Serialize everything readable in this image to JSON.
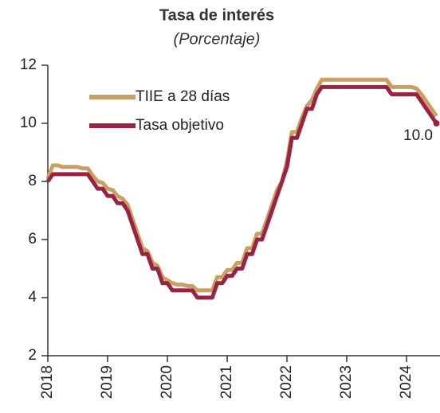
{
  "chart_data": {
    "type": "line",
    "title": "Tasa de interés",
    "subtitle": "(Porcentaje)",
    "annotation": "10.0",
    "legend": "upper left",
    "xlim": [
      2018,
      2024.57
    ],
    "xticks": [
      2018,
      2019,
      2020,
      2021,
      2022,
      2023,
      2024
    ],
    "ylim": [
      2,
      12
    ],
    "yticks": [
      2,
      4,
      6,
      8,
      10,
      12
    ],
    "x": [
      2018,
      2018.083,
      2018.167,
      2018.25,
      2018.333,
      2018.417,
      2018.5,
      2018.583,
      2018.667,
      2018.75,
      2018.833,
      2018.917,
      2019,
      2019.083,
      2019.167,
      2019.25,
      2019.333,
      2019.417,
      2019.5,
      2019.583,
      2019.667,
      2019.75,
      2019.833,
      2019.917,
      2020,
      2020.083,
      2020.167,
      2020.25,
      2020.333,
      2020.417,
      2020.5,
      2020.583,
      2020.667,
      2020.75,
      2020.833,
      2020.917,
      2021,
      2021.083,
      2021.167,
      2021.25,
      2021.333,
      2021.417,
      2021.5,
      2021.583,
      2021.667,
      2021.75,
      2021.833,
      2021.917,
      2022,
      2022.083,
      2022.167,
      2022.25,
      2022.333,
      2022.417,
      2022.5,
      2022.583,
      2022.667,
      2022.75,
      2022.833,
      2022.917,
      2023,
      2023.083,
      2023.167,
      2023.25,
      2023.333,
      2023.417,
      2023.5,
      2023.583,
      2023.667,
      2023.75,
      2023.833,
      2023.917,
      2024,
      2024.083,
      2024.167,
      2024.25,
      2024.333,
      2024.417,
      2024.5
    ],
    "series": [
      {
        "name": "TIIE a 28 días",
        "color": "#c9a063",
        "values": [
          8.1,
          8.55,
          8.55,
          8.5,
          8.5,
          8.5,
          8.5,
          8.45,
          8.45,
          8.2,
          8.0,
          7.95,
          7.75,
          7.7,
          7.5,
          7.4,
          7.2,
          6.7,
          6.2,
          5.7,
          5.6,
          5.2,
          5.1,
          4.7,
          4.6,
          4.5,
          4.45,
          4.45,
          4.4,
          4.4,
          4.25,
          4.25,
          4.25,
          4.25,
          4.7,
          4.7,
          4.95,
          4.95,
          5.2,
          5.2,
          5.7,
          5.7,
          6.2,
          6.2,
          6.7,
          7.2,
          7.7,
          8.0,
          8.7,
          9.7,
          9.7,
          10.2,
          10.6,
          10.8,
          11.2,
          11.5,
          11.5,
          11.5,
          11.5,
          11.5,
          11.5,
          11.5,
          11.5,
          11.5,
          11.5,
          11.5,
          11.5,
          11.5,
          11.5,
          11.25,
          11.25,
          11.25,
          11.25,
          11.25,
          11.2,
          11.0,
          10.75,
          10.5,
          10.25
        ]
      },
      {
        "name": "Tasa objetivo",
        "color": "#9b2241",
        "values": [
          8.0,
          8.25,
          8.25,
          8.25,
          8.25,
          8.25,
          8.25,
          8.25,
          8.25,
          8.0,
          7.75,
          7.75,
          7.5,
          7.5,
          7.25,
          7.25,
          7.0,
          6.5,
          6.0,
          5.5,
          5.5,
          5.0,
          5.0,
          4.5,
          4.5,
          4.25,
          4.25,
          4.25,
          4.25,
          4.25,
          4.0,
          4.0,
          4.0,
          4.0,
          4.5,
          4.5,
          4.75,
          4.75,
          5.0,
          5.0,
          5.5,
          5.5,
          6.0,
          6.0,
          6.5,
          7.0,
          7.5,
          8.0,
          8.5,
          9.5,
          9.5,
          10.0,
          10.5,
          10.5,
          11.0,
          11.25,
          11.25,
          11.25,
          11.25,
          11.25,
          11.25,
          11.25,
          11.25,
          11.25,
          11.25,
          11.25,
          11.25,
          11.25,
          11.25,
          11.0,
          11.0,
          11.0,
          11.0,
          11.0,
          11.0,
          10.75,
          10.5,
          10.25,
          10.0
        ]
      }
    ]
  }
}
